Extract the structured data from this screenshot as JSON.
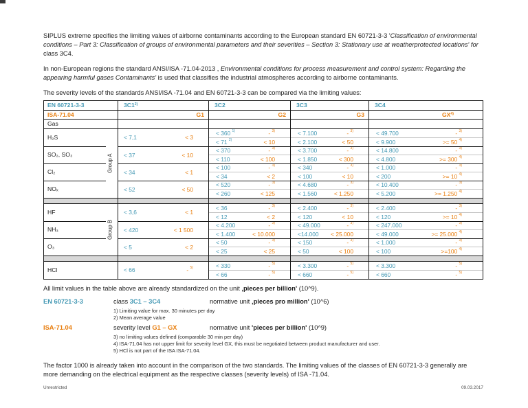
{
  "colors": {
    "teal": "#4398B4",
    "orange": "#E87E0E",
    "separator_gray": "#d8d8d8"
  },
  "intro": {
    "p1": {
      "pre": "SIPLUS extreme specifies the limiting values of airborne contaminants according to the European standard EN 60721-3-3 '",
      "italic": "Classification of environmental conditions – Part 3: Classification of groups of environmental parameters and their severities – Section 3: Stationary use at weatherprotected locations' for ",
      "post": "class 3C4."
    },
    "p2": {
      "pre": "In non-European regions the standard ANSI/ISA -71.04-2013 , ",
      "italic": "Environmental conditions for process measurement and control system: Regarding the appearing harmful gases Contaminants'",
      "post": " is used that classifies the industrial atmospheres according to airborne contaminants."
    },
    "p3": "The severity levels of the standards ANSI/ISA -71.04 and EN 60721-3-3 can be compared via the limiting values:"
  },
  "table": {
    "en_row": {
      "label": "EN 60721-3-3",
      "classes": [
        "3C1 ^2)",
        "3C2",
        "3C3",
        "3C4"
      ]
    },
    "isa_row": {
      "label": "ISA-71.04",
      "levels": [
        "G1",
        "G2",
        "G3",
        "GX ^4)"
      ]
    },
    "gas_row_label": "Gas",
    "groups": [
      {
        "label": "Group A",
        "rows": [
          {
            "gas": "H₂S",
            "c1": [
              "< 7,1",
              "< 3"
            ],
            "c2": [
              [
                "< 360 ^1)",
                "- ^3)"
              ],
              [
                "< 71 ^2)",
                "< 10"
              ]
            ],
            "c3": [
              [
                "< 7.100",
                "- ^3)"
              ],
              [
                "< 2.100",
                "< 50"
              ]
            ],
            "c4": [
              [
                "< 49.700",
                "- ^3)"
              ],
              [
                "< 9.900",
                ">= 50 ^4)"
              ]
            ]
          },
          {
            "gas": "SO₂, SO₃",
            "c1": [
              "< 37",
              "< 10"
            ],
            "c2": [
              [
                "< 370",
                "- ^3)"
              ],
              [
                "< 110",
                "< 100"
              ]
            ],
            "c3": [
              [
                "< 3.700",
                "- ^3)"
              ],
              [
                "< 1.850",
                "< 300"
              ]
            ],
            "c4": [
              [
                "< 14.800",
                "- ^3)"
              ],
              [
                "< 4.800",
                ">= 300 ^4)"
              ]
            ]
          },
          {
            "gas": "Cl₂",
            "c1": [
              "< 34",
              "< 1"
            ],
            "c2": [
              [
                "< 100",
                "- ^3)"
              ],
              [
                "< 34",
                "< 2"
              ]
            ],
            "c3": [
              [
                "< 340",
                "- ^3)"
              ],
              [
                "< 100",
                "< 10"
              ]
            ],
            "c4": [
              [
                "< 1.000",
                "- ^3)"
              ],
              [
                "< 200",
                ">= 10 ^4)"
              ]
            ]
          },
          {
            "gas": "NOₓ",
            "c1": [
              "< 52",
              "< 50"
            ],
            "c2": [
              [
                "< 520",
                "- ^3)"
              ],
              [
                "< 260",
                "< 125"
              ]
            ],
            "c3": [
              [
                "< 4.680",
                "- ^3)"
              ],
              [
                "< 1.560",
                "< 1.250"
              ]
            ],
            "c4": [
              [
                "< 10.400",
                "- ^3)"
              ],
              [
                "< 5.200",
                ">= 1.250 ^4)"
              ]
            ]
          }
        ]
      },
      {
        "label": "Group B",
        "rows": [
          {
            "gas": "HF",
            "c1": [
              "< 3,6",
              "< 1"
            ],
            "c2": [
              [
                "< 36",
                "- ^3)"
              ],
              [
                "< 12",
                "< 2"
              ]
            ],
            "c3": [
              [
                "< 2.400",
                "- ^3)"
              ],
              [
                "< 120",
                "< 10"
              ]
            ],
            "c4": [
              [
                "< 2.400",
                "- ^3)"
              ],
              [
                "< 120",
                ">= 10 ^4)"
              ]
            ]
          },
          {
            "gas": "NH₃",
            "c1": [
              "< 420",
              "< 1 500"
            ],
            "c2": [
              [
                "< 4.200",
                "- ^3)"
              ],
              [
                "< 1.400",
                "< 10.000"
              ]
            ],
            "c3": [
              [
                "< 49.000",
                "- ^3)"
              ],
              [
                "<14.000",
                "< 25.000"
              ]
            ],
            "c4": [
              [
                "< 247.000",
                "- ^3)"
              ],
              [
                "< 49.000",
                ">= 25.000 ^4)"
              ]
            ]
          },
          {
            "gas": "O₃",
            "c1": [
              "< 5",
              "< 2"
            ],
            "c2": [
              [
                "< 50",
                "- ^3)"
              ],
              [
                "< 25",
                "< 25"
              ]
            ],
            "c3": [
              [
                "< 150",
                "- ^3)"
              ],
              [
                "< 50",
                "< 100"
              ]
            ],
            "c4": [
              [
                "< 1.000",
                "- ^3)"
              ],
              [
                "< 100",
                ">=100 ^4)"
              ]
            ]
          }
        ]
      },
      {
        "label": "",
        "rows": [
          {
            "gas": "HCl",
            "c1": [
              "< 66",
              "- ^5)"
            ],
            "c2": [
              [
                "< 330",
                "- ^5)"
              ],
              [
                "< 66",
                "- ^5)"
              ]
            ],
            "c3": [
              [
                "< 3.300",
                "- ^5)"
              ],
              [
                "< 660",
                "- ^5)"
              ]
            ],
            "c4": [
              [
                "< 3.300",
                "- ^5)"
              ],
              [
                "< 660",
                "- ^5)"
              ]
            ]
          }
        ]
      }
    ]
  },
  "standardized_note": {
    "pre": "All limit values in the table above are already standardized on the unit ",
    "bold": "‚pieces per billion'",
    "post": " (10^9)."
  },
  "legend": {
    "en": {
      "label": "EN 60721-3-3",
      "mid_pre": "class ",
      "mid_hl": "3C1 – 3C4",
      "unit_pre": "normative unit ",
      "unit_bold": "‚pieces pro million'",
      "unit_post": " (10^6)"
    },
    "isa": {
      "label": "ISA-71.04",
      "mid_pre": "severity level ",
      "mid_hl": "G1 – GX",
      "unit_pre": "normative unit ",
      "unit_bold": "'pieces per billion'",
      "unit_post": " (10^9)"
    }
  },
  "notes": {
    "n1": "1) Limiting value for max. 30 minutes per day",
    "n2": "2) Mean average value",
    "n3": "3) no limiting values defined (comparable 30 min per day)",
    "n4": "4) ISA-71.04 has not upper limit for severity level GX, this must be negotiated between product manufacturer and user.",
    "n5": "5) HCl is not part of the ISA ISA-71.04."
  },
  "closing": "The factor 1000 is already taken into account in the comparison of the two standards. The limiting values of the classes of EN 60721-3-3 generally are more demanding on the electrical equipment as the respective classes (severity levels) of ISA -71.04.",
  "footer": {
    "left": "Unrestricted",
    "right": "09.03.2017"
  }
}
